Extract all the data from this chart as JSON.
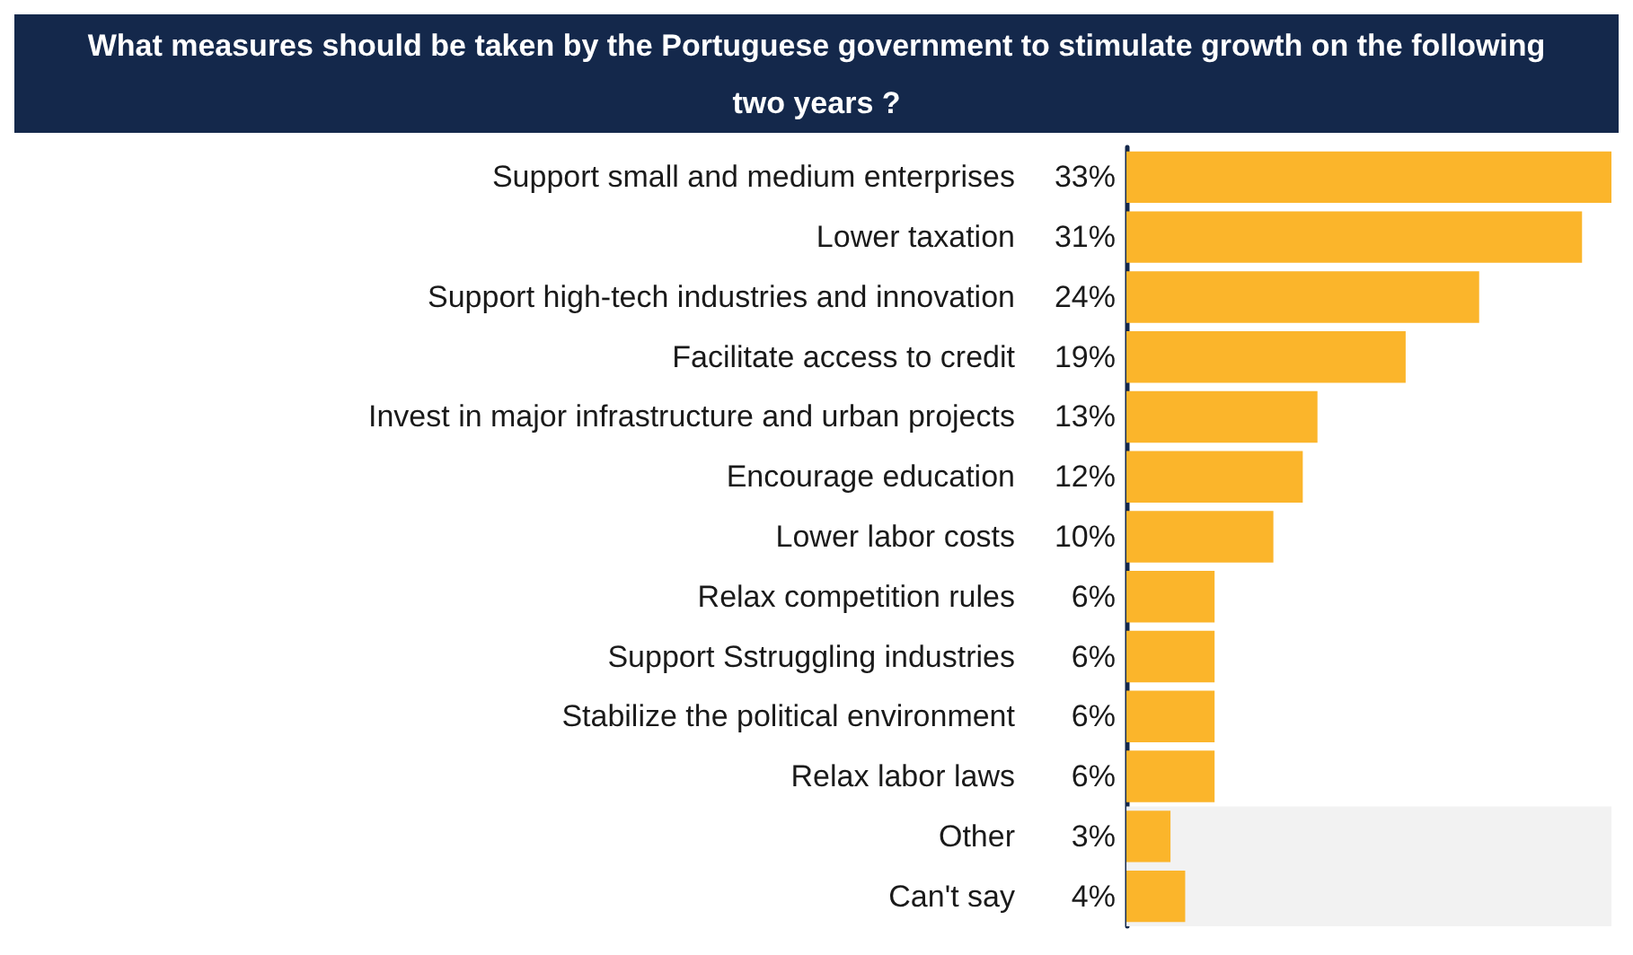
{
  "chart_data": {
    "type": "bar",
    "orientation": "horizontal",
    "title": "What measures should be taken by the Portuguese government to stimulate growth on the following two years ?",
    "categories": [
      "Support small and medium enterprises",
      "Lower taxation",
      "Support high-tech industries and innovation",
      "Facilitate access to credit",
      "Invest in major infrastructure and urban projects",
      "Encourage education",
      "Lower labor costs",
      "Relax competition rules",
      "Support Sstruggling industries",
      "Stabilize the political environment",
      "Relax labor laws",
      "Other",
      "Can't say"
    ],
    "values": [
      33,
      31,
      24,
      19,
      13,
      12,
      10,
      6,
      6,
      6,
      6,
      3,
      4
    ],
    "value_labels": [
      "33%",
      "31%",
      "24%",
      "19%",
      "13%",
      "12%",
      "10%",
      "6%",
      "6%",
      "6%",
      "6%",
      "3%",
      "4%"
    ],
    "color": "#fbb52b",
    "xlim": [
      0,
      33
    ],
    "tick_labels": "y",
    "bands": [
      {
        "axis": "y",
        "from": "Other",
        "to": "Can't say",
        "color": "#f2f2f2"
      }
    ]
  }
}
